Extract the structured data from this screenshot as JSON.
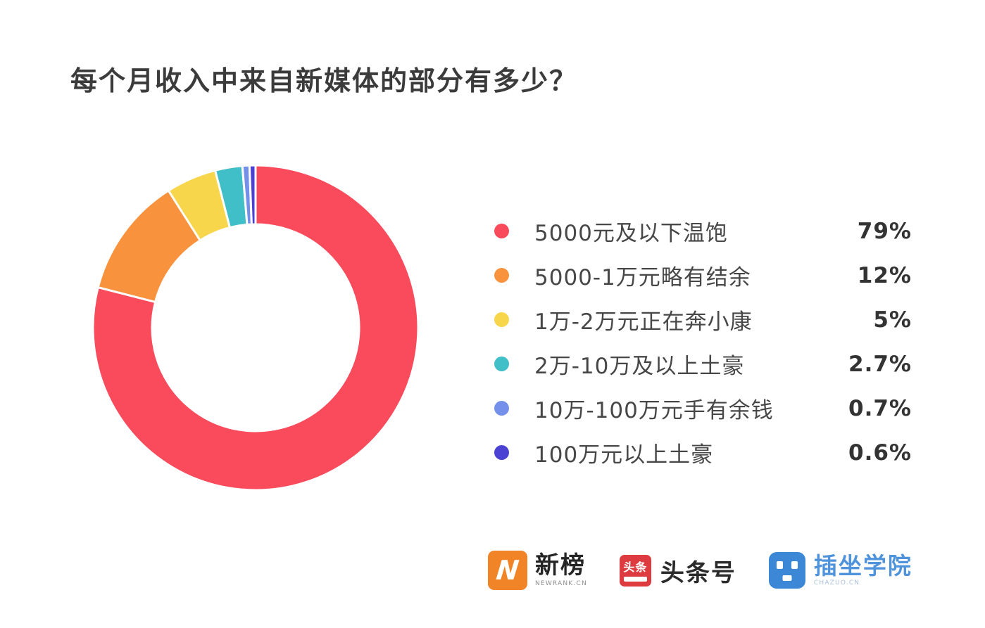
{
  "page": {
    "background": "#ffffff"
  },
  "title": "每个月收入中来自新媒体的部分有多少？",
  "chart_data": {
    "type": "pie",
    "subtype": "donut",
    "title": "每个月收入中来自新媒体的部分有多少？",
    "categories": [
      "5000元及以下温饱",
      "5000-1万元略有结余",
      "1万-2万元正在奔小康",
      "2万-10万及以上土豪",
      "10万-100万元手有余钱",
      "100万元以上土豪"
    ],
    "values": [
      79,
      12,
      5,
      2.7,
      0.7,
      0.6
    ],
    "unit": "%",
    "colors": [
      "#F94B5C",
      "#F9923D",
      "#F8D64B",
      "#41BFC8",
      "#7590EA",
      "#4B41D3"
    ],
    "legend_position": "right",
    "donut": {
      "start_angle_deg": 0,
      "direction": "clockwise",
      "inner_radius_ratio": 0.636,
      "separator_color": "#ffffff"
    },
    "items": [
      {
        "label": "5000元及以下温饱",
        "value": 79,
        "value_label": "79%",
        "color": "#F94B5C"
      },
      {
        "label": "5000-1万元略有结余",
        "value": 12,
        "value_label": "12%",
        "color": "#F9923D"
      },
      {
        "label": "1万-2万元正在奔小康",
        "value": 5,
        "value_label": "5%",
        "color": "#F8D64B"
      },
      {
        "label": "2万-10万及以上土豪",
        "value": 2.7,
        "value_label": "2.7%",
        "color": "#41BFC8"
      },
      {
        "label": "10万-100万元手有余钱",
        "value": 0.7,
        "value_label": "0.7%",
        "color": "#7590EA"
      },
      {
        "label": "100万元以上土豪",
        "value": 0.6,
        "value_label": "0.6%",
        "color": "#4B41D3"
      }
    ]
  },
  "footer_logos": {
    "newrank": {
      "icon": "newrank-n-icon",
      "icon_letter": "N",
      "title": "新榜",
      "subtitle": "NEWRANK.CN",
      "brand_color": "#F08427"
    },
    "toutiao": {
      "icon": "toutiao-icon",
      "icon_text": "头条",
      "title": "头条号",
      "brand_color": "#DE3B40"
    },
    "chazuo": {
      "icon": "chazuo-robot-icon",
      "title": "插坐学院",
      "subtitle": "CHAZUO.CN",
      "brand_color": "#3C87D6"
    }
  }
}
